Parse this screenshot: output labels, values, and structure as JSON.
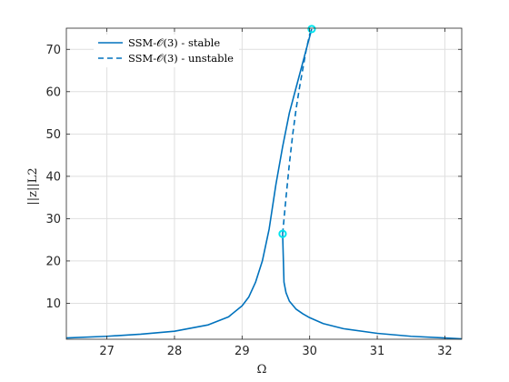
{
  "chart_data": {
    "type": "line",
    "xlabel": "Ω",
    "ylabel": "||z||L2",
    "xlim": [
      26.4,
      32.25
    ],
    "ylim": [
      1.5,
      75
    ],
    "xticks": [
      27,
      28,
      29,
      30,
      31,
      32
    ],
    "yticks": [
      10,
      20,
      30,
      40,
      50,
      60,
      70
    ],
    "grid": true,
    "legend_position": "top-left",
    "series": [
      {
        "name": "SSM-𝒪(3) - stable",
        "style": "solid",
        "color": "#0072bd",
        "x": [
          26.4,
          27.0,
          27.5,
          28.0,
          28.5,
          28.8,
          29.0,
          29.1,
          29.2,
          29.3,
          29.4,
          29.5,
          29.6,
          29.7,
          29.8,
          29.9,
          30.03
        ],
        "y": [
          1.8,
          2.2,
          2.7,
          3.4,
          4.9,
          6.8,
          9.4,
          11.5,
          15.0,
          20.0,
          27.5,
          38.0,
          47.0,
          55.0,
          61.0,
          67.0,
          74.8
        ]
      },
      {
        "name": "SSM-𝒪(3) - unstable",
        "style": "dashed",
        "color": "#0072bd",
        "x": [
          29.6,
          29.65,
          29.7,
          29.75,
          29.8,
          29.85,
          29.9,
          29.95,
          30.0,
          30.03
        ],
        "y": [
          26.4,
          35.0,
          43.0,
          50.0,
          56.0,
          61.0,
          65.5,
          70.0,
          73.5,
          74.8
        ]
      },
      {
        "name": "",
        "style": "solid",
        "color": "#0072bd",
        "x": [
          29.6,
          29.62,
          29.65,
          29.7,
          29.8,
          29.9,
          30.0,
          30.2,
          30.5,
          31.0,
          31.5,
          32.0,
          32.25
        ],
        "y": [
          26.4,
          15.0,
          12.5,
          10.5,
          8.6,
          7.5,
          6.6,
          5.2,
          4.0,
          2.9,
          2.2,
          1.8,
          1.6
        ]
      }
    ],
    "markers": [
      {
        "x": 30.03,
        "y": 74.8,
        "color": "#00e5ee"
      },
      {
        "x": 29.6,
        "y": 26.4,
        "color": "#00e5ee"
      }
    ]
  }
}
